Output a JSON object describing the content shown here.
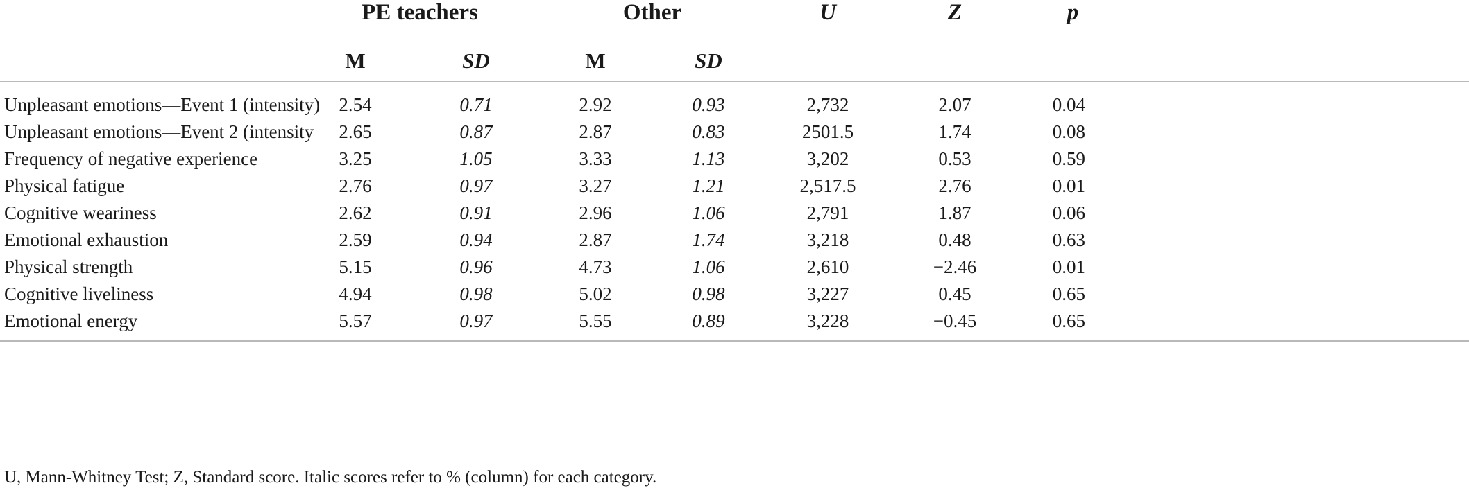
{
  "headers": {
    "group1": "PE teachers",
    "group2": "Other",
    "u": "U",
    "z": "Z",
    "p": "p",
    "m": "M",
    "sd": "SD"
  },
  "rows": [
    {
      "label": "Unpleasant emotions—Event 1 (intensity)",
      "pe_m": "2.54",
      "pe_sd": "0.71",
      "other_m": "2.92",
      "other_sd": "0.93",
      "u": "2,732",
      "z": "2.07",
      "p": "0.04"
    },
    {
      "label": "Unpleasant emotions—Event 2 (intensity",
      "pe_m": "2.65",
      "pe_sd": "0.87",
      "other_m": "2.87",
      "other_sd": "0.83",
      "u": "2501.5",
      "z": "1.74",
      "p": "0.08"
    },
    {
      "label": "Frequency of negative experience",
      "pe_m": "3.25",
      "pe_sd": "1.05",
      "other_m": "3.33",
      "other_sd": "1.13",
      "u": "3,202",
      "z": "0.53",
      "p": "0.59"
    },
    {
      "label": "Physical fatigue",
      "pe_m": "2.76",
      "pe_sd": "0.97",
      "other_m": "3.27",
      "other_sd": "1.21",
      "u": "2,517.5",
      "z": "2.76",
      "p": "0.01"
    },
    {
      "label": "Cognitive weariness",
      "pe_m": "2.62",
      "pe_sd": "0.91",
      "other_m": "2.96",
      "other_sd": "1.06",
      "u": "2,791",
      "z": "1.87",
      "p": "0.06"
    },
    {
      "label": "Emotional exhaustion",
      "pe_m": "2.59",
      "pe_sd": "0.94",
      "other_m": "2.87",
      "other_sd": "1.74",
      "u": "3,218",
      "z": "0.48",
      "p": "0.63"
    },
    {
      "label": "Physical strength",
      "pe_m": "5.15",
      "pe_sd": "0.96",
      "other_m": "4.73",
      "other_sd": "1.06",
      "u": "2,610",
      "z": "−2.46",
      "p": "0.01"
    },
    {
      "label": "Cognitive liveliness",
      "pe_m": "4.94",
      "pe_sd": "0.98",
      "other_m": "5.02",
      "other_sd": "0.98",
      "u": "3,227",
      "z": "0.45",
      "p": "0.65"
    },
    {
      "label": "Emotional energy",
      "pe_m": "5.57",
      "pe_sd": "0.97",
      "other_m": "5.55",
      "other_sd": "0.89",
      "u": "3,228",
      "z": "−0.45",
      "p": "0.65"
    }
  ],
  "footnote": "U, Mann-Whitney Test; Z, Standard score. Italic scores refer to % (column) for each category."
}
